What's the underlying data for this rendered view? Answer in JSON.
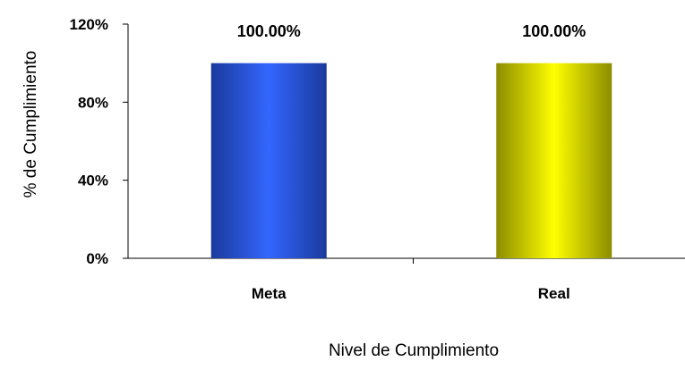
{
  "chart_data": {
    "type": "bar",
    "title": "",
    "xlabel": "Nivel de Cumplimiento",
    "ylabel": "% de Cumplimiento",
    "categories": [
      "Meta",
      "Real"
    ],
    "values": [
      100,
      100
    ],
    "data_labels": [
      "100.00%",
      "100.00%"
    ],
    "ylim": [
      0,
      120
    ],
    "yticks": [
      0,
      40,
      80,
      120
    ],
    "ytick_labels": [
      "0%",
      "40%",
      "80%",
      "120%"
    ],
    "grid": false,
    "legend": "none",
    "bar_colors": [
      {
        "edge": "#1a3a9c",
        "center": "#3366ff"
      },
      {
        "edge": "#8c8c00",
        "center": "#ffff00"
      }
    ]
  }
}
